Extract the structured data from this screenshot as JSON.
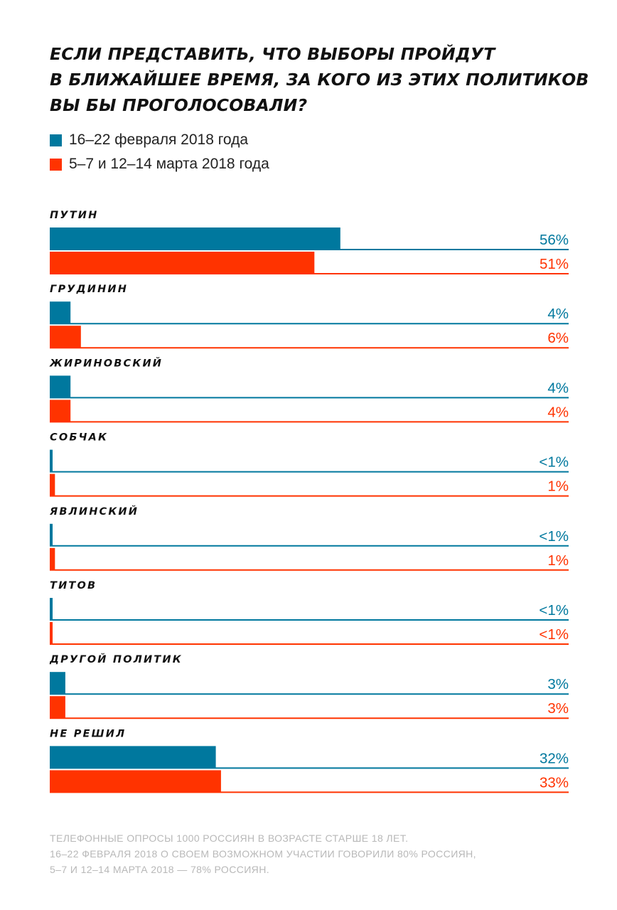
{
  "title": {
    "line1": "ЕСЛИ ПРЕДСТАВИТЬ, ЧТО ВЫБОРЫ ПРОЙДУТ",
    "line2": "В БЛИЖАЙШЕЕ ВРЕМЯ, ЗА КОГО ИЗ ЭТИХ ПОЛИТИКОВ",
    "line3": "ВЫ БЫ ПРОГОЛОСОВАЛИ?"
  },
  "legend": {
    "items": [
      {
        "label": "16–22 февраля 2018 года",
        "color": "#00789e"
      },
      {
        "label": "5–7 и 12–14 марта 2018 года",
        "color": "#ff3300"
      }
    ]
  },
  "chart_data": {
    "type": "bar",
    "orientation": "horizontal",
    "title": "ЕСЛИ ПРЕДСТАВИТЬ, ЧТО ВЫБОРЫ ПРОЙДУТ В БЛИЖАЙШЕЕ ВРЕМЯ, ЗА КОГО ИЗ ЭТИХ ПОЛИТИКОВ ВЫ БЫ ПРОГОЛОСОВАЛИ?",
    "categories": [
      "ПУТИН",
      "ГРУДИНИН",
      "ЖИРИНОВСКИЙ",
      "СОБЧАК",
      "ЯВЛИНСКИЙ",
      "ТИТОВ",
      "ДРУГОЙ ПОЛИТИК",
      "НЕ РЕШИЛ"
    ],
    "series": [
      {
        "name": "16–22 февраля 2018 года",
        "color": "#00789e",
        "values": [
          56,
          4,
          4,
          0.5,
          0.5,
          0.5,
          3,
          32
        ],
        "labels": [
          "56%",
          "4%",
          "4%",
          "<1%",
          "<1%",
          "<1%",
          "3%",
          "32%"
        ]
      },
      {
        "name": "5–7 и 12–14 марта 2018 года",
        "color": "#ff3300",
        "values": [
          51,
          6,
          4,
          1,
          1,
          0.5,
          3,
          33
        ],
        "labels": [
          "51%",
          "6%",
          "4%",
          "1%",
          "1%",
          "<1%",
          "3%",
          "33%"
        ]
      }
    ],
    "xlim": [
      0,
      100
    ],
    "grid": false,
    "legend_position": "top-left"
  },
  "note": {
    "line1": "Телефонные опросы 1000 россиян в возрасте старше 18 лет.",
    "line2": "16–22 февраля 2018 о своем возможном участии говорили 80% россиян,",
    "line3": "5–7 и 12–14 марта 2018 — 78% россиян."
  }
}
